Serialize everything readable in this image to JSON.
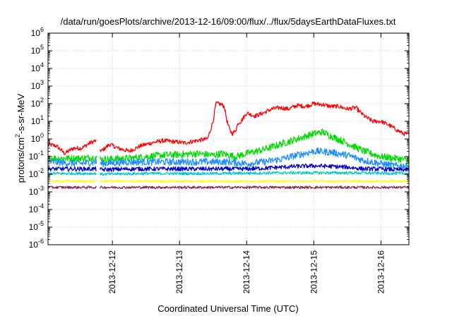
{
  "chart_data": {
    "type": "line",
    "title": "/data/run/goesPlots/archive/2013-12-16/09:00/flux/../flux/5daysEarthDataFluxes.txt",
    "xlabel": "Coordinated Universal Time (UTC)",
    "ylabel_parts": [
      "protons/cm",
      "2",
      "-s-sr-MeV"
    ],
    "y_scale": "log",
    "ylim": [
      1e-06,
      1000000.0
    ],
    "xlim": [
      "2013-12-11T01:00",
      "2013-12-16T10:00"
    ],
    "grid": true,
    "x_ticks": [
      "2013-12-12",
      "2013-12-13",
      "2013-12-14",
      "2013-12-15",
      "2013-12-16"
    ],
    "y_ticks": [
      {
        "base": "10",
        "exp": "-6"
      },
      {
        "base": "10",
        "exp": "-5"
      },
      {
        "base": "10",
        "exp": "-4"
      },
      {
        "base": "10",
        "exp": "-3"
      },
      {
        "base": "10",
        "exp": "-2"
      },
      {
        "base": "10",
        "exp": "-1"
      },
      {
        "base": "10",
        "exp": "0"
      },
      {
        "base": "10",
        "exp": "1"
      },
      {
        "base": "10",
        "exp": "2"
      },
      {
        "base": "10",
        "exp": "3"
      },
      {
        "base": "10",
        "exp": "4"
      },
      {
        "base": "10",
        "exp": "5"
      },
      {
        "base": "10",
        "exp": "6"
      }
    ],
    "data_gap": [
      "2013-12-11T18:30",
      "2013-12-11T19:30"
    ],
    "series": [
      {
        "color": "#ff0000",
        "x": [
          "2013-12-11T01:00",
          "2013-12-11T04:00",
          "2013-12-11T07:00",
          "2013-12-11T10:00",
          "2013-12-11T13:00",
          "2013-12-11T16:00",
          "2013-12-11T18:00",
          "2013-12-11T20:00",
          "2013-12-11T23:00",
          "2013-12-12T02:00",
          "2013-12-12T06:00",
          "2013-12-12T10:00",
          "2013-12-12T14:00",
          "2013-12-12T18:00",
          "2013-12-12T22:00",
          "2013-12-13T02:00",
          "2013-12-13T06:00",
          "2013-12-13T10:00",
          "2013-12-13T11:00",
          "2013-12-13T12:00",
          "2013-12-13T13:00",
          "2013-12-13T14:00",
          "2013-12-13T15:00",
          "2013-12-13T16:00",
          "2013-12-13T17:00",
          "2013-12-13T18:00",
          "2013-12-13T19:00",
          "2013-12-13T20:00",
          "2013-12-13T21:00",
          "2013-12-13T22:00",
          "2013-12-14T00:00",
          "2013-12-14T03:00",
          "2013-12-14T06:00",
          "2013-12-14T09:00",
          "2013-12-14T12:00",
          "2013-12-14T15:00",
          "2013-12-14T18:00",
          "2013-12-14T21:00",
          "2013-12-15T00:00",
          "2013-12-15T03:00",
          "2013-12-15T06:00",
          "2013-12-15T09:00",
          "2013-12-15T12:00",
          "2013-12-15T15:00",
          "2013-12-15T18:00",
          "2013-12-15T21:00",
          "2013-12-16T00:00",
          "2013-12-16T03:00",
          "2013-12-16T06:00",
          "2013-12-16T08:00",
          "2013-12-16T10:00"
        ],
        "y": [
          0.5,
          0.4,
          0.15,
          0.3,
          0.3,
          0.6,
          0.8,
          0.2,
          0.5,
          0.3,
          0.2,
          0.4,
          0.6,
          0.8,
          0.7,
          0.6,
          0.8,
          1.0,
          3,
          10,
          100,
          100,
          90,
          70,
          10,
          3,
          2,
          3,
          8,
          10,
          30,
          20,
          30,
          50,
          60,
          50,
          80,
          70,
          100,
          90,
          70,
          70,
          50,
          60,
          20,
          10,
          10,
          6,
          3,
          2,
          2
        ]
      },
      {
        "color": "#00dd00",
        "x": [
          "2013-12-11T01:00",
          "2013-12-11T12:00",
          "2013-12-11T18:00",
          "2013-12-11T20:00",
          "2013-12-12T06:00",
          "2013-12-12T12:00",
          "2013-12-12T18:00",
          "2013-12-13T00:00",
          "2013-12-13T06:00",
          "2013-12-13T12:00",
          "2013-12-13T15:00",
          "2013-12-13T20:00",
          "2013-12-14T00:00",
          "2013-12-14T06:00",
          "2013-12-14T12:00",
          "2013-12-14T18:00",
          "2013-12-15T00:00",
          "2013-12-15T03:00",
          "2013-12-15T06:00",
          "2013-12-15T10:00",
          "2013-12-15T14:00",
          "2013-12-15T18:00",
          "2013-12-16T00:00",
          "2013-12-16T05:00",
          "2013-12-16T10:00"
        ],
        "y": [
          0.08,
          0.08,
          0.09,
          0.07,
          0.08,
          0.1,
          0.12,
          0.13,
          0.15,
          0.12,
          0.15,
          0.1,
          0.15,
          0.25,
          0.5,
          1.0,
          2.0,
          2.5,
          1.5,
          0.8,
          0.4,
          0.2,
          0.1,
          0.08,
          0.06
        ]
      },
      {
        "color": "#1e90ff",
        "x": [
          "2013-12-11T01:00",
          "2013-12-11T12:00",
          "2013-12-11T18:00",
          "2013-12-11T20:00",
          "2013-12-12T06:00",
          "2013-12-12T18:00",
          "2013-12-13T06:00",
          "2013-12-13T18:00",
          "2013-12-14T00:00",
          "2013-12-14T06:00",
          "2013-12-14T12:00",
          "2013-12-14T18:00",
          "2013-12-15T00:00",
          "2013-12-15T06:00",
          "2013-12-15T12:00",
          "2013-12-15T18:00",
          "2013-12-16T00:00",
          "2013-12-16T05:00",
          "2013-12-16T10:00"
        ],
        "y": [
          0.05,
          0.04,
          0.05,
          0.04,
          0.05,
          0.05,
          0.05,
          0.05,
          0.04,
          0.05,
          0.07,
          0.12,
          0.2,
          0.18,
          0.12,
          0.06,
          0.04,
          0.03,
          0.03
        ]
      },
      {
        "color": "#0000cc",
        "x": [
          "2013-12-11T01:00",
          "2013-12-11T12:00",
          "2013-12-11T18:00",
          "2013-12-11T20:00",
          "2013-12-12T06:00",
          "2013-12-12T18:00",
          "2013-12-13T06:00",
          "2013-12-13T18:00",
          "2013-12-14T00:00",
          "2013-12-14T06:00",
          "2013-12-14T12:00",
          "2013-12-14T18:00",
          "2013-12-15T00:00",
          "2013-12-15T06:00",
          "2013-12-15T12:00",
          "2013-12-15T18:00",
          "2013-12-16T00:00",
          "2013-12-16T05:00",
          "2013-12-16T10:00"
        ],
        "y": [
          0.02,
          0.02,
          0.02,
          0.018,
          0.02,
          0.02,
          0.02,
          0.02,
          0.02,
          0.022,
          0.025,
          0.028,
          0.03,
          0.028,
          0.025,
          0.02,
          0.02,
          0.018,
          0.018
        ]
      },
      {
        "color": "#00c8c8",
        "x": [
          "2013-12-11T01:00",
          "2013-12-11T18:00",
          "2013-12-11T20:00",
          "2013-12-12T12:00",
          "2013-12-13T12:00",
          "2013-12-14T12:00",
          "2013-12-15T12:00",
          "2013-12-16T10:00"
        ],
        "y": [
          0.011,
          0.011,
          0.01,
          0.011,
          0.011,
          0.012,
          0.012,
          0.011
        ]
      },
      {
        "color": "#ffff00",
        "x": [
          "2013-12-11T01:00",
          "2013-12-11T18:00",
          "2013-12-11T20:00",
          "2013-12-12T12:00",
          "2013-12-13T12:00",
          "2013-12-14T12:00",
          "2013-12-15T12:00",
          "2013-12-16T10:00"
        ],
        "y": [
          0.004,
          0.004,
          0.004,
          0.004,
          0.004,
          0.004,
          0.004,
          0.004
        ]
      },
      {
        "color": "#8b2252",
        "x": [
          "2013-12-11T01:00",
          "2013-12-11T18:00",
          "2013-12-11T20:00",
          "2013-12-12T12:00",
          "2013-12-13T12:00",
          "2013-12-14T12:00",
          "2013-12-15T12:00",
          "2013-12-16T10:00"
        ],
        "y": [
          0.0018,
          0.0018,
          0.0018,
          0.0018,
          0.0018,
          0.0018,
          0.0018,
          0.0018
        ]
      }
    ]
  }
}
